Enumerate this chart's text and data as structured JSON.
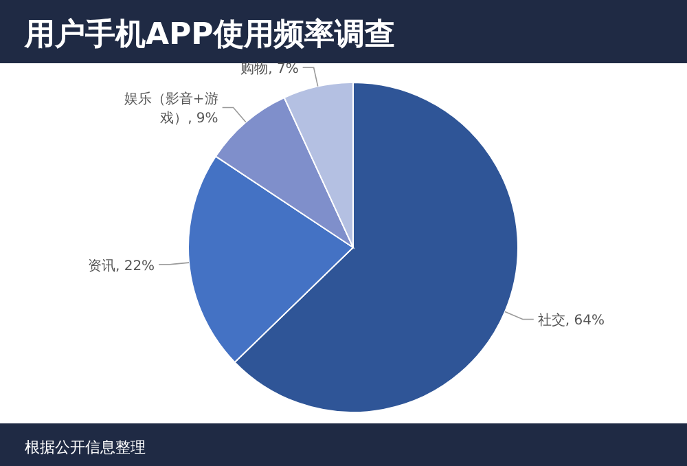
{
  "chart_data": {
    "type": "pie",
    "title": "用户手机APP使用频率调查",
    "categories": [
      "社交",
      "资讯",
      "娱乐（影音+游戏）",
      "购物"
    ],
    "values": [
      64,
      22,
      9,
      7
    ],
    "colors": [
      "#2f5597",
      "#4472c4",
      "#7f8fcb",
      "#b4c0e2"
    ],
    "value_labels": [
      ", 64%",
      ", 22%",
      ", 9%",
      ", 7%"
    ],
    "annotations": [
      "根据公开信息整理"
    ]
  }
}
